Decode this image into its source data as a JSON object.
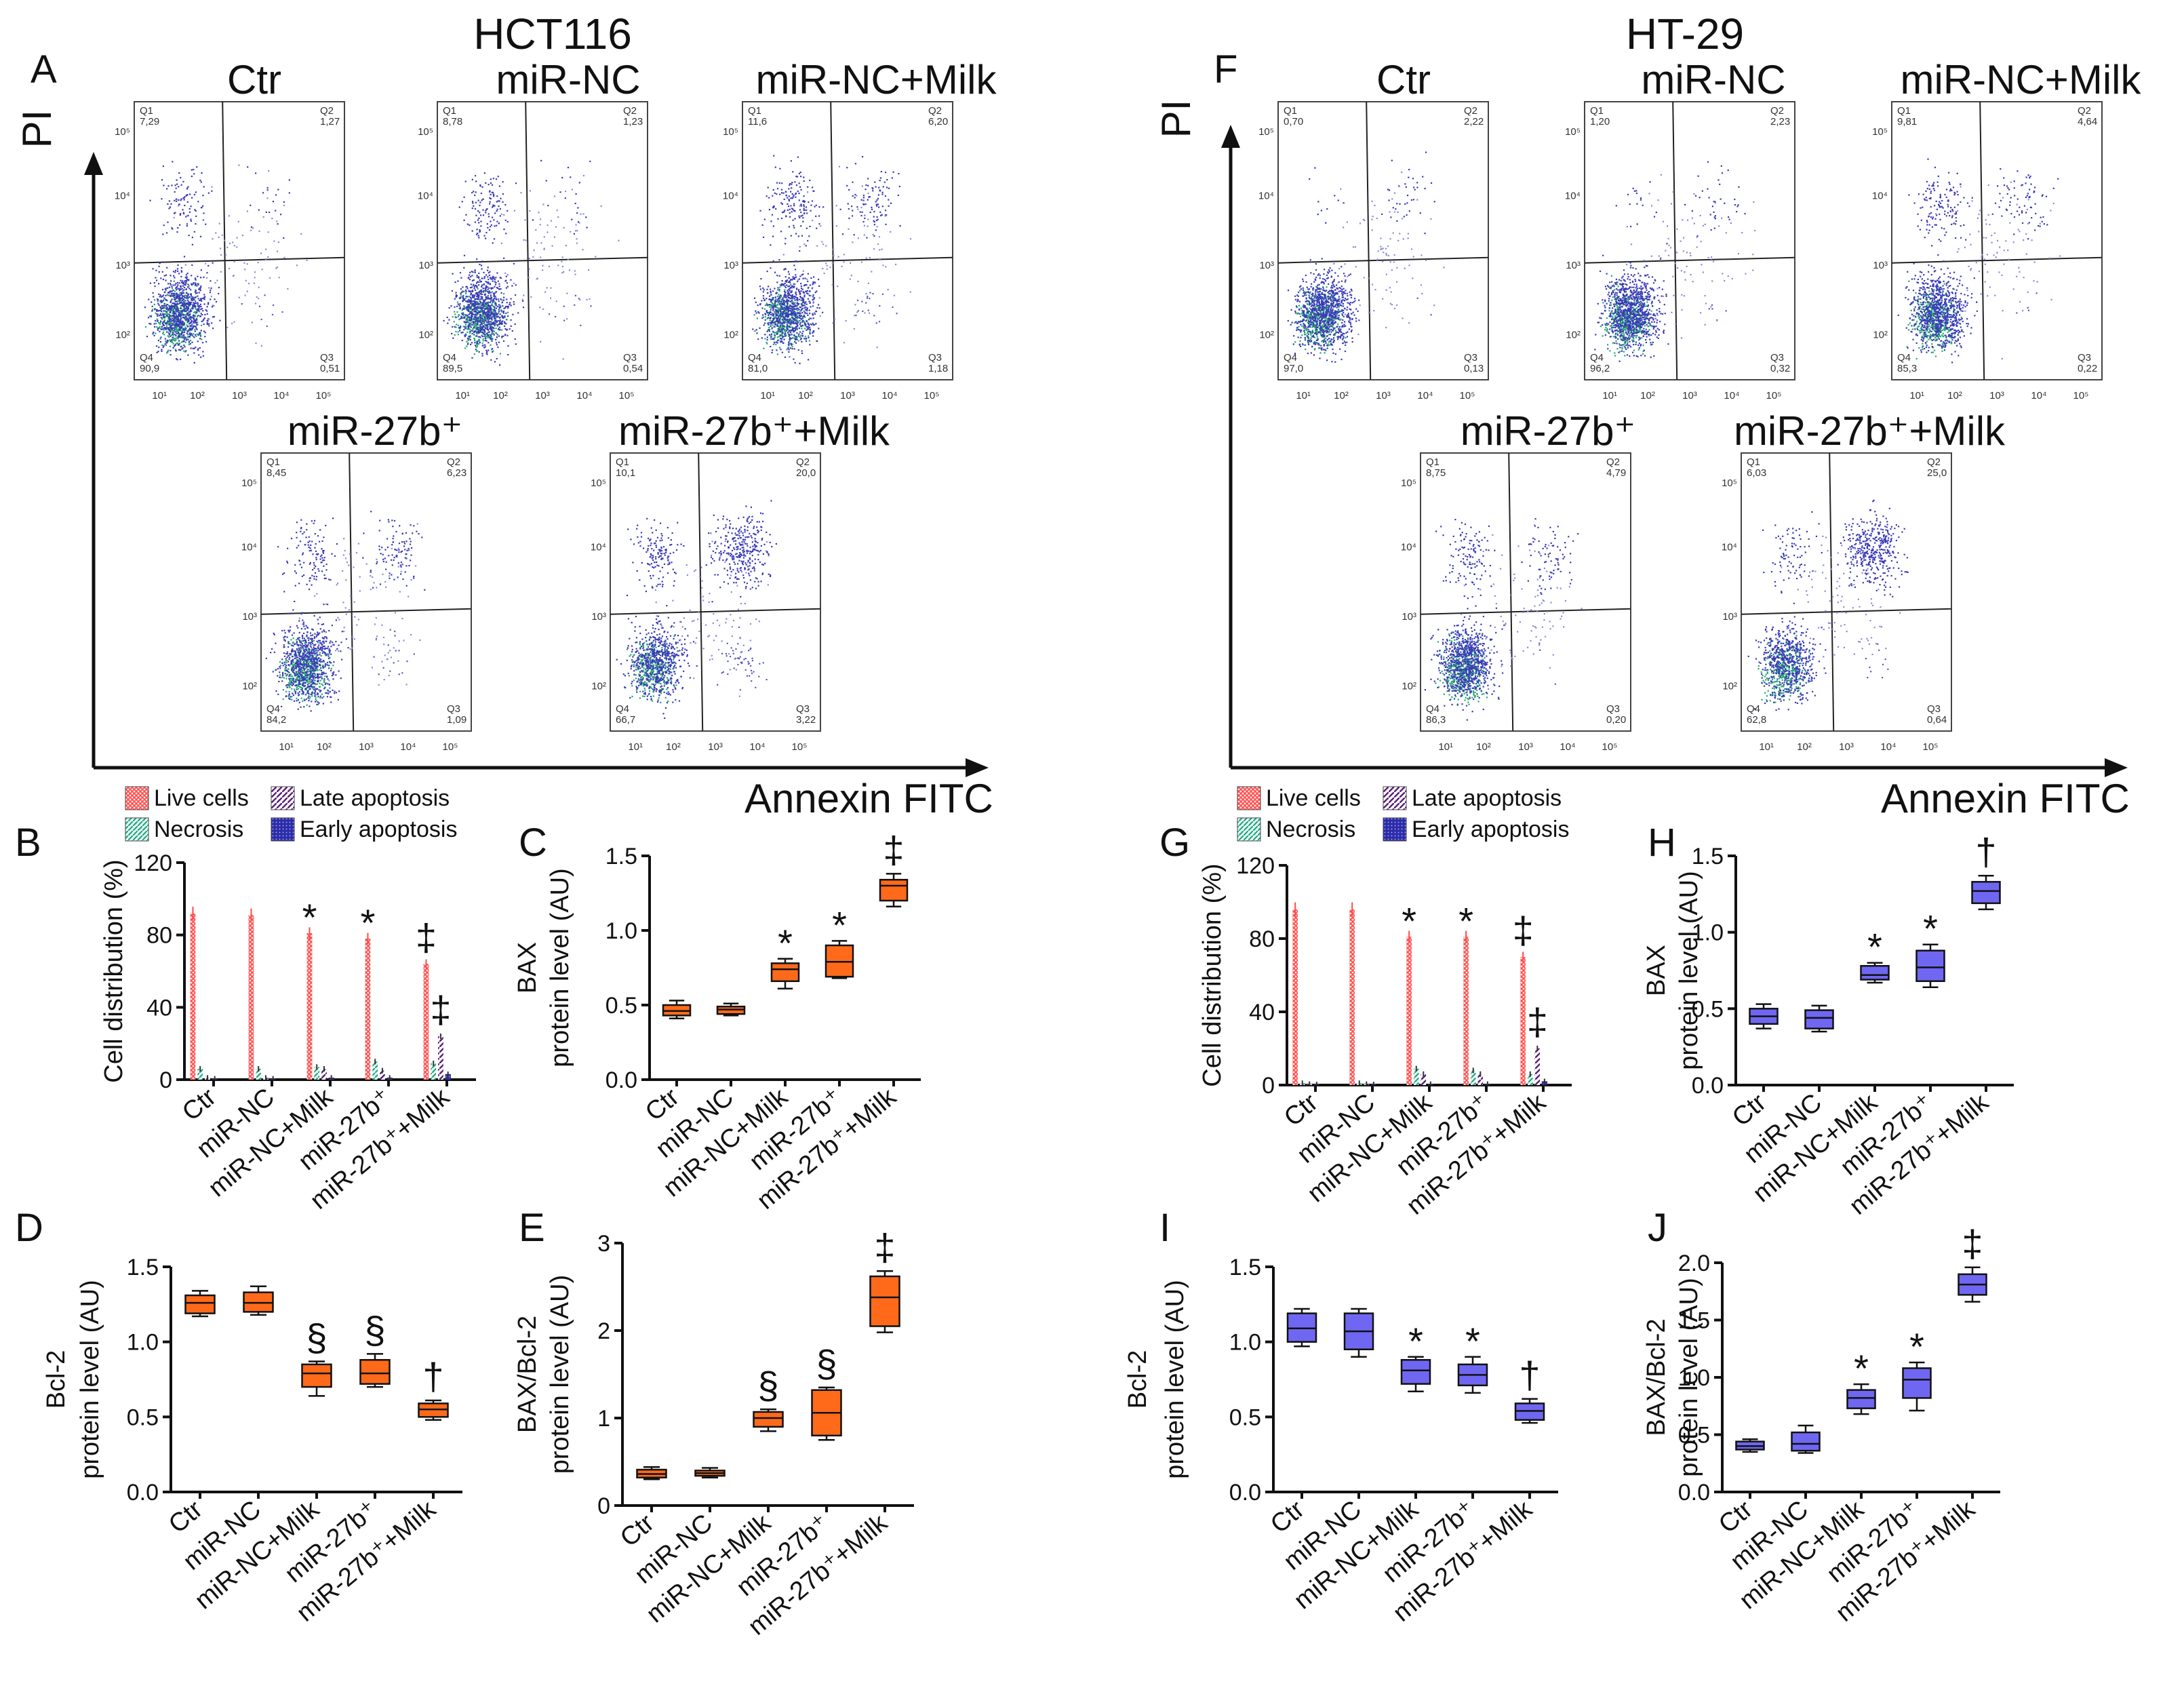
{
  "panels": {
    "hct": {
      "header": "HCT116",
      "scatter_letter": "A",
      "y_axis": "PI",
      "x_axis": "Annexin FITC",
      "ticks": [
        "10¹",
        "10²",
        "10³",
        "10⁴",
        "10⁵"
      ],
      "plots": [
        {
          "title": "Ctr",
          "q": [
            "Q1",
            "Q2",
            "Q3",
            "Q4"
          ],
          "v": [
            "7,29",
            "1,27",
            "0,51",
            "90,9"
          ]
        },
        {
          "title": "miR-NC",
          "q": [
            "Q1",
            "Q2",
            "Q3",
            "Q4"
          ],
          "v": [
            "8,78",
            "1,23",
            "0,54",
            "89,5"
          ]
        },
        {
          "title": "miR-NC+Milk",
          "q": [
            "Q1",
            "Q2",
            "Q3",
            "Q4"
          ],
          "v": [
            "11,6",
            "6,20",
            "1,18",
            "81,0"
          ]
        },
        {
          "title": "miR-27b⁺",
          "q": [
            "Q1",
            "Q2",
            "Q3",
            "Q4"
          ],
          "v": [
            "8,45",
            "6,23",
            "1,09",
            "84,2"
          ]
        },
        {
          "title": "miR-27b⁺+Milk",
          "q": [
            "Q1",
            "Q2",
            "Q3",
            "Q4"
          ],
          "v": [
            "10,1",
            "20,0",
            "3,22",
            "66,7"
          ]
        }
      ],
      "legend": [
        "Live cells",
        "Late apoptosis",
        "Necrosis",
        "Early apoptosis"
      ]
    },
    "ht": {
      "header": "HT-29",
      "scatter_letter": "F",
      "y_axis": "PI",
      "x_axis": "Annexin FITC",
      "ticks": [
        "10¹",
        "10²",
        "10³",
        "10⁴",
        "10⁵"
      ],
      "plots": [
        {
          "title": "Ctr",
          "q": [
            "Q1",
            "Q2",
            "Q3",
            "Q4"
          ],
          "v": [
            "0,70",
            "2,22",
            "0,13",
            "97,0"
          ]
        },
        {
          "title": "miR-NC",
          "q": [
            "Q1",
            "Q2",
            "Q3",
            "Q4"
          ],
          "v": [
            "1,20",
            "2,23",
            "0,32",
            "96,2"
          ]
        },
        {
          "title": "miR-NC+Milk",
          "q": [
            "Q1",
            "Q2",
            "Q3",
            "Q4"
          ],
          "v": [
            "9,81",
            "4,64",
            "0,22",
            "85,3"
          ]
        },
        {
          "title": "miR-27b⁺",
          "q": [
            "Q1",
            "Q2",
            "Q3",
            "Q4"
          ],
          "v": [
            "8,75",
            "4,79",
            "0,20",
            "86,3"
          ]
        },
        {
          "title": "miR-27b⁺+Milk",
          "q": [
            "Q1",
            "Q2",
            "Q3",
            "Q4"
          ],
          "v": [
            "6,03",
            "25,0",
            "0,64",
            "62,8"
          ]
        }
      ],
      "legend": [
        "Live cells",
        "Late apoptosis",
        "Necrosis",
        "Early apoptosis"
      ]
    }
  },
  "colors": {
    "hct_box": "#ff6a1a",
    "ht_box": "#6f67f2",
    "live": "#ff5a5a",
    "necrosis": "#1fae86",
    "late": "#6a2a8a",
    "early": "#2a2aa0"
  },
  "chart_data": [
    {
      "id": "B",
      "type": "bar",
      "title": "",
      "ylabel": "Cell distribution (%)",
      "xlabel": "",
      "ylim": [
        0,
        120
      ],
      "yticks": [
        "0",
        "40",
        "80",
        "120"
      ],
      "categories": [
        "Ctr",
        "miR-NC",
        "miR-NC+Milk",
        "miR-27b⁺",
        "miR-27b⁺+Milk"
      ],
      "series": [
        {
          "name": "Live cells",
          "values": [
            92,
            91,
            81,
            78,
            64
          ]
        },
        {
          "name": "Necrosis",
          "values": [
            6,
            6,
            7,
            10,
            9
          ]
        },
        {
          "name": "Late apoptosis",
          "values": [
            1,
            1,
            6,
            5,
            24
          ]
        },
        {
          "name": "Early apoptosis",
          "values": [
            0.5,
            0.5,
            1,
            1,
            3
          ]
        }
      ],
      "markers": [
        "",
        "",
        "*",
        "*",
        "‡"
      ],
      "extra_markers": [
        "",
        "",
        "",
        "",
        "‡"
      ]
    },
    {
      "id": "C",
      "type": "box",
      "title": "",
      "ylabel": [
        "BAX",
        "protein level (AU)"
      ],
      "ylim": [
        0,
        1.5
      ],
      "yticks": [
        "0.0",
        "0.5",
        "1.0",
        "1.5"
      ],
      "categories": [
        "Ctr",
        "miR-NC",
        "miR-NC+Milk",
        "miR-27b⁺",
        "miR-27b⁺+Milk"
      ],
      "boxes": [
        {
          "min": 0.41,
          "q1": 0.43,
          "median": 0.46,
          "q3": 0.5,
          "max": 0.53
        },
        {
          "min": 0.43,
          "q1": 0.44,
          "median": 0.47,
          "q3": 0.49,
          "max": 0.51
        },
        {
          "min": 0.61,
          "q1": 0.66,
          "median": 0.74,
          "q3": 0.78,
          "max": 0.81
        },
        {
          "min": 0.68,
          "q1": 0.69,
          "median": 0.79,
          "q3": 0.9,
          "max": 0.93
        },
        {
          "min": 1.16,
          "q1": 1.2,
          "median": 1.3,
          "q3": 1.34,
          "max": 1.38
        }
      ],
      "markers": [
        "",
        "",
        "*",
        "*",
        "‡"
      ]
    },
    {
      "id": "D",
      "type": "box",
      "title": "",
      "ylabel": [
        "Bcl-2",
        "protein level (AU)"
      ],
      "ylim": [
        0,
        1.5
      ],
      "yticks": [
        "0.0",
        "0.5",
        "1.0",
        "1.5"
      ],
      "categories": [
        "Ctr",
        "miR-NC",
        "miR-NC+Milk",
        "miR-27b⁺",
        "miR-27b⁺+Milk"
      ],
      "boxes": [
        {
          "min": 1.17,
          "q1": 1.19,
          "median": 1.26,
          "q3": 1.31,
          "max": 1.34
        },
        {
          "min": 1.18,
          "q1": 1.2,
          "median": 1.26,
          "q3": 1.33,
          "max": 1.37
        },
        {
          "min": 0.64,
          "q1": 0.7,
          "median": 0.79,
          "q3": 0.85,
          "max": 0.87
        },
        {
          "min": 0.7,
          "q1": 0.72,
          "median": 0.79,
          "q3": 0.88,
          "max": 0.92
        },
        {
          "min": 0.48,
          "q1": 0.5,
          "median": 0.55,
          "q3": 0.59,
          "max": 0.61
        }
      ],
      "markers": [
        "",
        "",
        "§",
        "§",
        "†"
      ]
    },
    {
      "id": "E",
      "type": "box",
      "title": "",
      "ylabel": [
        "BAX/Bcl-2",
        "protein level (AU)"
      ],
      "ylim": [
        0,
        3
      ],
      "yticks": [
        "0",
        "1",
        "2",
        "3"
      ],
      "categories": [
        "Ctr",
        "miR-NC",
        "miR-NC+Milk",
        "miR-27b⁺",
        "miR-27b⁺+Milk"
      ],
      "boxes": [
        {
          "min": 0.3,
          "q1": 0.32,
          "median": 0.36,
          "q3": 0.41,
          "max": 0.44
        },
        {
          "min": 0.32,
          "q1": 0.34,
          "median": 0.37,
          "q3": 0.4,
          "max": 0.43
        },
        {
          "min": 0.85,
          "q1": 0.9,
          "median": 1.0,
          "q3": 1.07,
          "max": 1.1
        },
        {
          "min": 0.75,
          "q1": 0.8,
          "median": 1.06,
          "q3": 1.32,
          "max": 1.35
        },
        {
          "min": 1.98,
          "q1": 2.05,
          "median": 2.38,
          "q3": 2.62,
          "max": 2.68
        }
      ],
      "markers": [
        "",
        "",
        "§",
        "§",
        "‡"
      ]
    },
    {
      "id": "G",
      "type": "bar",
      "title": "",
      "ylabel": "Cell distribution (%)",
      "xlabel": "",
      "ylim": [
        0,
        120
      ],
      "yticks": [
        "0",
        "40",
        "80",
        "120"
      ],
      "categories": [
        "Ctr",
        "miR-NC",
        "miR-NC+Milk",
        "miR-27b⁺",
        "miR-27b⁺+Milk"
      ],
      "series": [
        {
          "name": "Live cells",
          "values": [
            96,
            96,
            81,
            81,
            70
          ]
        },
        {
          "name": "Necrosis",
          "values": [
            1,
            1,
            9,
            8,
            6
          ]
        },
        {
          "name": "Late apoptosis",
          "values": [
            0.5,
            0.5,
            6,
            6,
            20
          ]
        },
        {
          "name": "Early apoptosis",
          "values": [
            0.3,
            0.3,
            0.5,
            0.5,
            2
          ]
        }
      ],
      "markers": [
        "",
        "",
        "*",
        "*",
        "‡"
      ],
      "extra_markers": [
        "",
        "",
        "",
        "",
        "‡"
      ]
    },
    {
      "id": "H",
      "type": "box",
      "title": "",
      "ylabel": [
        "BAX",
        "protein level (AU)"
      ],
      "ylim": [
        0,
        1.5
      ],
      "yticks": [
        "0.0",
        "0.5",
        "1.0",
        "1.5"
      ],
      "categories": [
        "Ctr",
        "miR-NC",
        "miR-NC+Milk",
        "miR-27b⁺",
        "miR-27b⁺+Milk"
      ],
      "boxes": [
        {
          "min": 0.37,
          "q1": 0.4,
          "median": 0.45,
          "q3": 0.5,
          "max": 0.53
        },
        {
          "min": 0.35,
          "q1": 0.37,
          "median": 0.44,
          "q3": 0.49,
          "max": 0.52
        },
        {
          "min": 0.67,
          "q1": 0.69,
          "median": 0.72,
          "q3": 0.78,
          "max": 0.8
        },
        {
          "min": 0.64,
          "q1": 0.68,
          "median": 0.77,
          "q3": 0.88,
          "max": 0.92
        },
        {
          "min": 1.15,
          "q1": 1.19,
          "median": 1.27,
          "q3": 1.33,
          "max": 1.37
        }
      ],
      "markers": [
        "",
        "",
        "*",
        "*",
        "†"
      ]
    },
    {
      "id": "I",
      "type": "box",
      "title": "",
      "ylabel": [
        "Bcl-2",
        "protein level (AU)"
      ],
      "ylim": [
        0,
        1.5
      ],
      "yticks": [
        "0.0",
        "0.5",
        "1.0",
        "1.5"
      ],
      "categories": [
        "Ctr",
        "miR-NC",
        "miR-NC+Milk",
        "miR-27b⁺",
        "miR-27b⁺+Milk"
      ],
      "boxes": [
        {
          "min": 0.97,
          "q1": 1.0,
          "median": 1.09,
          "q3": 1.19,
          "max": 1.22
        },
        {
          "min": 0.9,
          "q1": 0.95,
          "median": 1.07,
          "q3": 1.19,
          "max": 1.22
        },
        {
          "min": 0.67,
          "q1": 0.72,
          "median": 0.81,
          "q3": 0.88,
          "max": 0.9
        },
        {
          "min": 0.66,
          "q1": 0.71,
          "median": 0.78,
          "q3": 0.85,
          "max": 0.9
        },
        {
          "min": 0.46,
          "q1": 0.48,
          "median": 0.54,
          "q3": 0.59,
          "max": 0.62
        }
      ],
      "markers": [
        "",
        "",
        "*",
        "*",
        "†"
      ]
    },
    {
      "id": "J",
      "type": "box",
      "title": "",
      "ylabel": [
        "BAX/Bcl-2",
        "protein level (AU)"
      ],
      "ylim": [
        0,
        2.0
      ],
      "yticks": [
        "0.0",
        "0.5",
        "1.0",
        "1.5",
        "2.0"
      ],
      "categories": [
        "Ctr",
        "miR-NC",
        "miR-NC+Milk",
        "miR-27b⁺",
        "miR-27b⁺+Milk"
      ],
      "boxes": [
        {
          "min": 0.35,
          "q1": 0.37,
          "median": 0.4,
          "q3": 0.44,
          "max": 0.46
        },
        {
          "min": 0.34,
          "q1": 0.36,
          "median": 0.42,
          "q3": 0.52,
          "max": 0.58
        },
        {
          "min": 0.68,
          "q1": 0.73,
          "median": 0.82,
          "q3": 0.89,
          "max": 0.94
        },
        {
          "min": 0.71,
          "q1": 0.82,
          "median": 0.98,
          "q3": 1.08,
          "max": 1.13
        },
        {
          "min": 1.66,
          "q1": 1.72,
          "median": 1.81,
          "q3": 1.9,
          "max": 1.96
        }
      ],
      "markers": [
        "",
        "",
        "*",
        "*",
        "‡"
      ]
    }
  ]
}
